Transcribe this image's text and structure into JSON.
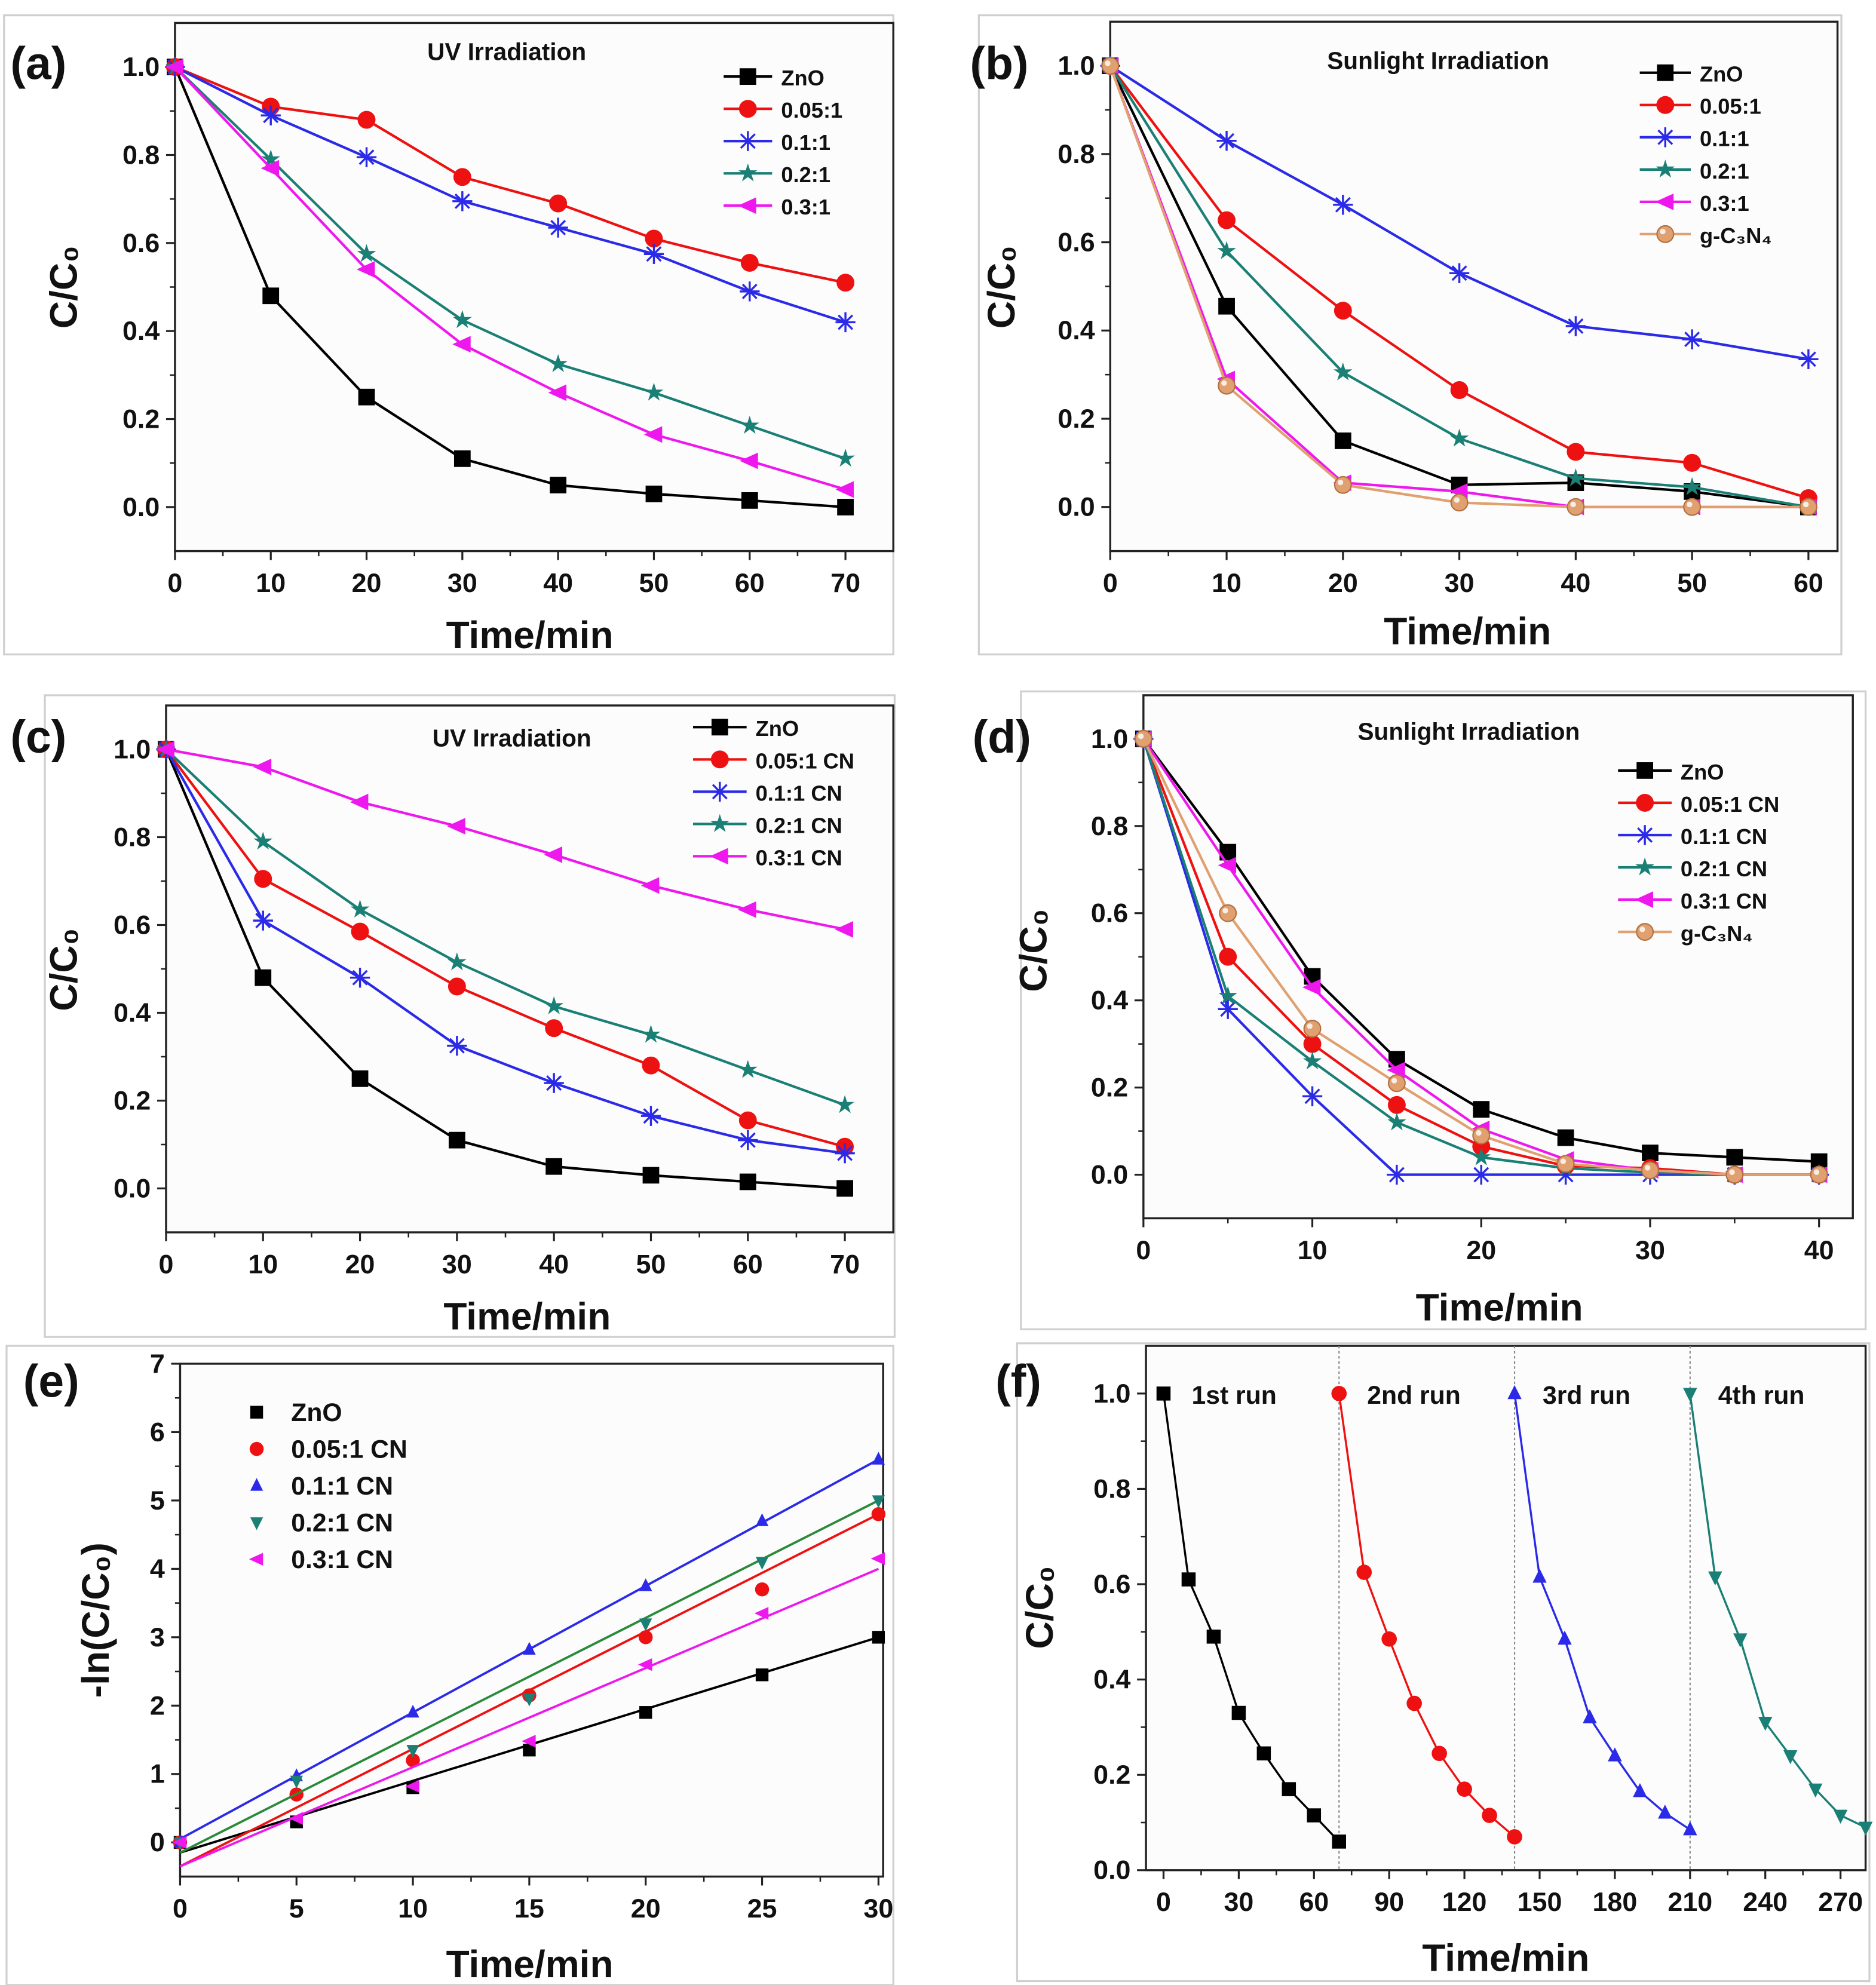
{
  "colors": {
    "ZnO": "#000000",
    "r005": "#ee1111",
    "r01": "#2a2ae8",
    "r02": "#1a7f74",
    "r03": "#ee18ee",
    "gcn": "#e0a070",
    "fit02": "#2a8a3a"
  },
  "chart_data": [
    {
      "panel": "(a)",
      "type": "line",
      "title": "UV Irradiation",
      "xlabel": "Time/min",
      "ylabel": "C/C₀",
      "xlim": [
        0,
        75
      ],
      "ylim": [
        -0.1,
        1.1
      ],
      "xticks": [
        "0",
        "10",
        "20",
        "30",
        "40",
        "50",
        "60",
        "70"
      ],
      "yticks": [
        "0.0",
        "0.2",
        "0.4",
        "0.6",
        "0.8",
        "1.0"
      ],
      "legend": "top-right",
      "x": [
        0,
        10,
        20,
        30,
        40,
        50,
        60,
        70
      ],
      "series": [
        {
          "name": "ZnO",
          "color": "#000000",
          "marker": "square",
          "values": [
            1,
            0.48,
            0.25,
            0.11,
            0.05,
            0.03,
            0.015,
            0
          ]
        },
        {
          "name": "0.05:1",
          "color": "#ee1111",
          "marker": "circle",
          "values": [
            1,
            0.91,
            0.88,
            0.75,
            0.69,
            0.61,
            0.555,
            0.51
          ]
        },
        {
          "name": "0.1:1",
          "color": "#2a2ae8",
          "marker": "asterisk",
          "values": [
            1,
            0.89,
            0.795,
            0.695,
            0.635,
            0.575,
            0.49,
            0.42
          ]
        },
        {
          "name": "0.2:1",
          "color": "#1a7f74",
          "marker": "star",
          "values": [
            1,
            0.79,
            0.575,
            0.425,
            0.325,
            0.26,
            0.185,
            0.11
          ]
        },
        {
          "name": "0.3:1",
          "color": "#ee18ee",
          "marker": "triangle-left",
          "values": [
            1,
            0.77,
            0.54,
            0.37,
            0.26,
            0.165,
            0.105,
            0.04
          ]
        }
      ]
    },
    {
      "panel": "(b)",
      "type": "line",
      "title": "Sunlight Irradiation",
      "xlabel": "Time/min",
      "ylabel": "C/C₀",
      "xlim": [
        0,
        62.5
      ],
      "ylim": [
        -0.1,
        1.1
      ],
      "xticks": [
        "0",
        "10",
        "20",
        "30",
        "40",
        "50",
        "60"
      ],
      "yticks": [
        "0.0",
        "0.2",
        "0.4",
        "0.6",
        "0.8",
        "1.0"
      ],
      "legend": "top-right",
      "x": [
        0,
        10,
        20,
        30,
        40,
        50,
        60
      ],
      "series": [
        {
          "name": "ZnO",
          "color": "#000000",
          "marker": "square",
          "values": [
            1,
            0.455,
            0.15,
            0.05,
            0.055,
            0.035,
            0
          ]
        },
        {
          "name": "0.05:1",
          "color": "#ee1111",
          "marker": "circle",
          "values": [
            1,
            0.65,
            0.445,
            0.265,
            0.125,
            0.1,
            0.02
          ]
        },
        {
          "name": "0.1:1",
          "color": "#2a2ae8",
          "marker": "asterisk",
          "values": [
            1,
            0.83,
            0.685,
            0.53,
            0.41,
            0.38,
            0.335
          ]
        },
        {
          "name": "0.2:1",
          "color": "#1a7f74",
          "marker": "star",
          "values": [
            1,
            0.58,
            0.305,
            0.155,
            0.065,
            0.045,
            0
          ]
        },
        {
          "name": "0.3:1",
          "color": "#ee18ee",
          "marker": "triangle-left",
          "values": [
            1,
            0.29,
            0.055,
            0.035,
            0,
            0,
            0
          ]
        },
        {
          "name": "g-C₃N₄",
          "color": "#e0a070",
          "marker": "ball",
          "values": [
            1,
            0.275,
            0.05,
            0.01,
            0,
            0,
            0
          ]
        }
      ]
    },
    {
      "panel": "(c)",
      "type": "line",
      "title": "UV Irradiation",
      "xlabel": "Time/min",
      "ylabel": "C/C₀",
      "xlim": [
        0,
        75
      ],
      "ylim": [
        -0.1,
        1.1
      ],
      "xticks": [
        "0",
        "10",
        "20",
        "30",
        "40",
        "50",
        "60",
        "70"
      ],
      "yticks": [
        "0.0",
        "0.2",
        "0.4",
        "0.6",
        "0.8",
        "1.0"
      ],
      "legend": "top-right",
      "x": [
        0,
        10,
        20,
        30,
        40,
        50,
        60,
        70
      ],
      "series": [
        {
          "name": "ZnO",
          "color": "#000000",
          "marker": "square",
          "values": [
            1,
            0.48,
            0.25,
            0.11,
            0.05,
            0.03,
            0.015,
            0
          ]
        },
        {
          "name": "0.05:1 CN",
          "color": "#ee1111",
          "marker": "circle",
          "values": [
            1,
            0.705,
            0.585,
            0.46,
            0.365,
            0.28,
            0.155,
            0.095
          ]
        },
        {
          "name": "0.1:1 CN",
          "color": "#2a2ae8",
          "marker": "asterisk",
          "values": [
            1,
            0.61,
            0.48,
            0.325,
            0.24,
            0.165,
            0.11,
            0.08
          ]
        },
        {
          "name": "0.2:1 CN",
          "color": "#1a7f74",
          "marker": "star",
          "values": [
            1,
            0.79,
            0.635,
            0.515,
            0.415,
            0.35,
            0.27,
            0.19
          ]
        },
        {
          "name": "0.3:1 CN",
          "color": "#ee18ee",
          "marker": "triangle-left",
          "values": [
            1,
            0.96,
            0.88,
            0.825,
            0.76,
            0.69,
            0.635,
            0.59
          ]
        }
      ]
    },
    {
      "panel": "(d)",
      "type": "line",
      "title": "Sunlight Irradiation",
      "xlabel": "Time/min",
      "ylabel": "C/C₀",
      "xlim": [
        0,
        42
      ],
      "ylim": [
        -0.1,
        1.1
      ],
      "xticks": [
        "0",
        "10",
        "20",
        "30",
        "40"
      ],
      "yticks": [
        "0.0",
        "0.2",
        "0.4",
        "0.6",
        "0.8",
        "1.0"
      ],
      "legend": "top-right",
      "x": [
        0,
        5,
        10,
        15,
        20,
        25,
        30,
        35,
        40
      ],
      "series": [
        {
          "name": "ZnO",
          "color": "#000000",
          "marker": "square",
          "values": [
            1,
            0.74,
            0.455,
            0.265,
            0.15,
            0.085,
            0.05,
            0.04,
            0.03
          ]
        },
        {
          "name": "0.05:1 CN",
          "color": "#ee1111",
          "marker": "circle",
          "values": [
            1,
            0.5,
            0.3,
            0.16,
            0.065,
            0.02,
            0.015,
            0,
            0
          ]
        },
        {
          "name": "0.1:1 CN",
          "color": "#2a2ae8",
          "marker": "asterisk",
          "values": [
            1,
            0.38,
            0.18,
            0,
            0,
            0,
            0,
            0,
            0
          ]
        },
        {
          "name": "0.2:1 CN",
          "color": "#1a7f74",
          "marker": "star",
          "values": [
            1,
            0.41,
            0.26,
            0.12,
            0.04,
            0.015,
            0.005,
            0,
            0
          ]
        },
        {
          "name": "0.3:1 CN",
          "color": "#ee18ee",
          "marker": "triangle-left",
          "values": [
            1,
            0.71,
            0.43,
            0.24,
            0.105,
            0.035,
            0.01,
            0,
            0
          ]
        },
        {
          "name": "g-C₃N₄",
          "color": "#e0a070",
          "marker": "ball",
          "values": [
            1,
            0.6,
            0.335,
            0.21,
            0.09,
            0.025,
            0.01,
            0,
            0
          ]
        }
      ]
    },
    {
      "panel": "(e)",
      "type": "scatter",
      "xlabel": "Time/min",
      "ylabel": "-ln(C/C₀)",
      "xlim": [
        0,
        30.2
      ],
      "ylim": [
        -0.5,
        7
      ],
      "xticks": [
        "0",
        "5",
        "10",
        "15",
        "20",
        "25",
        "30"
      ],
      "yticks": [
        "0",
        "1",
        "2",
        "3",
        "4",
        "5",
        "6",
        "7"
      ],
      "legend": "top-left",
      "x": [
        0,
        5,
        10,
        15,
        20,
        25,
        30
      ],
      "series": [
        {
          "name": "ZnO",
          "color": "#000000",
          "marker": "square",
          "values": [
            0,
            0.3,
            0.8,
            1.35,
            1.9,
            2.45,
            3.0
          ],
          "fit": [
            -0.15,
            3.0
          ]
        },
        {
          "name": "0.05:1 CN",
          "color": "#ee1111",
          "marker": "circle",
          "values": [
            0,
            0.7,
            1.2,
            2.15,
            3.0,
            3.7,
            4.8
          ],
          "fit": [
            -0.35,
            4.8
          ]
        },
        {
          "name": "0.1:1 CN",
          "color": "#2a2ae8",
          "marker": "triangle-up",
          "values": [
            0,
            0.97,
            1.9,
            2.82,
            3.75,
            4.7,
            5.6
          ],
          "fit": [
            0.05,
            5.6
          ]
        },
        {
          "name": "0.2:1 CN",
          "color": "#1a7f74",
          "marker": "triangle-down",
          "values": [
            0,
            0.9,
            1.35,
            2.1,
            3.2,
            4.1,
            5.0
          ],
          "fit": [
            -0.15,
            5.0
          ],
          "fit_color": "#2a8a3a"
        },
        {
          "name": "0.3:1 CN",
          "color": "#ee18ee",
          "marker": "triangle-left",
          "values": [
            0,
            0.35,
            0.82,
            1.48,
            2.6,
            3.35,
            4.15
          ],
          "fit": [
            -0.35,
            4.0
          ]
        }
      ]
    },
    {
      "panel": "(f)",
      "type": "line",
      "xlabel": "Time/min",
      "ylabel": "C/C₀",
      "xlim": [
        -7,
        280
      ],
      "ylim": [
        0,
        1.1
      ],
      "xticks": [
        "0",
        "30",
        "60",
        "90",
        "120",
        "150",
        "180",
        "210",
        "240",
        "270"
      ],
      "yticks": [
        "0.0",
        "0.2",
        "0.4",
        "0.6",
        "0.8",
        "1.0"
      ],
      "separators": [
        70,
        140,
        210
      ],
      "series": [
        {
          "name": "1st run",
          "color": "#000000",
          "marker": "square",
          "x": [
            0,
            10,
            20,
            30,
            40,
            50,
            60,
            70
          ],
          "values": [
            1,
            0.61,
            0.49,
            0.33,
            0.245,
            0.17,
            0.115,
            0.06
          ]
        },
        {
          "name": "2nd run",
          "color": "#ee1111",
          "marker": "circle",
          "x": [
            70,
            80,
            90,
            100,
            110,
            120,
            130,
            140
          ],
          "values": [
            1,
            0.625,
            0.485,
            0.35,
            0.245,
            0.17,
            0.115,
            0.07
          ]
        },
        {
          "name": "3rd run",
          "color": "#2a2ae8",
          "marker": "triangle-up",
          "x": [
            140,
            150,
            160,
            170,
            180,
            190,
            200,
            210
          ],
          "values": [
            1,
            0.615,
            0.485,
            0.32,
            0.24,
            0.165,
            0.12,
            0.085
          ]
        },
        {
          "name": "4th run",
          "color": "#1a7f74",
          "marker": "triangle-down",
          "x": [
            210,
            220,
            230,
            240,
            250,
            260,
            270,
            280
          ],
          "values": [
            1,
            0.615,
            0.485,
            0.31,
            0.24,
            0.17,
            0.115,
            0.09
          ]
        }
      ]
    }
  ]
}
